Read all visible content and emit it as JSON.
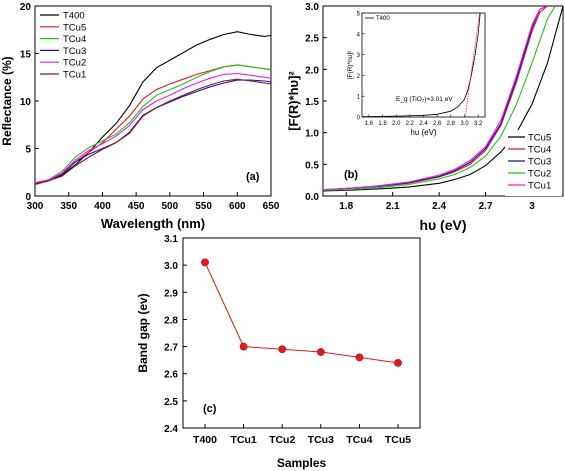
{
  "chart_data": [
    {
      "id": "a",
      "type": "line",
      "panel_label": "(a)",
      "xlabel": "Wavelength (nm)",
      "ylabel": "Reflectance (%)",
      "xlim": [
        300,
        650
      ],
      "ylim": [
        0,
        20
      ],
      "xticks": [
        300,
        350,
        400,
        450,
        500,
        550,
        600,
        650
      ],
      "yticks": [
        0,
        5,
        10,
        15,
        20
      ],
      "legend_position": "top-left",
      "series": [
        {
          "name": "T400",
          "color": "#000000",
          "x": [
            300,
            320,
            340,
            360,
            380,
            400,
            420,
            440,
            460,
            480,
            500,
            520,
            540,
            560,
            580,
            600,
            620,
            640,
            650
          ],
          "y": [
            1.3,
            1.6,
            2.2,
            3.3,
            4.6,
            6.2,
            7.6,
            9.5,
            12.0,
            13.5,
            14.3,
            15.1,
            15.9,
            16.5,
            17.0,
            17.3,
            17.0,
            16.8,
            16.9
          ]
        },
        {
          "name": "TCu5",
          "color": "#e0191b",
          "x": [
            300,
            320,
            340,
            360,
            380,
            400,
            420,
            440,
            460,
            480,
            500,
            520,
            540,
            560,
            580,
            600,
            620,
            640,
            650
          ],
          "y": [
            1.2,
            1.6,
            2.3,
            3.6,
            4.6,
            5.6,
            7.0,
            8.4,
            10.2,
            11.2,
            11.8,
            12.3,
            12.8,
            13.2,
            13.6,
            13.8,
            13.6,
            13.4,
            13.3
          ]
        },
        {
          "name": "TCu4",
          "color": "#21c21c",
          "x": [
            300,
            320,
            340,
            360,
            380,
            400,
            420,
            440,
            460,
            480,
            500,
            520,
            540,
            560,
            580,
            600,
            620,
            640,
            650
          ],
          "y": [
            1.3,
            1.7,
            2.6,
            4.1,
            5.1,
            5.8,
            6.5,
            7.7,
            9.4,
            10.6,
            11.2,
            11.8,
            12.5,
            13.1,
            13.6,
            13.8,
            13.6,
            13.4,
            13.3
          ]
        },
        {
          "name": "TCu3",
          "color": "#1414b4",
          "x": [
            300,
            320,
            340,
            360,
            380,
            400,
            420,
            440,
            460,
            480,
            500,
            520,
            540,
            560,
            580,
            600,
            620,
            640,
            650
          ],
          "y": [
            1.3,
            1.6,
            2.3,
            3.6,
            4.4,
            5.0,
            5.6,
            6.7,
            8.5,
            9.3,
            9.9,
            10.5,
            11.0,
            11.5,
            11.9,
            12.2,
            12.2,
            12.1,
            12.0
          ]
        },
        {
          "name": "TCu2",
          "color": "#e81de8",
          "x": [
            300,
            320,
            340,
            360,
            380,
            400,
            420,
            440,
            460,
            480,
            500,
            520,
            540,
            560,
            580,
            600,
            620,
            640,
            650
          ],
          "y": [
            1.4,
            1.7,
            2.4,
            3.8,
            4.8,
            5.5,
            6.3,
            7.4,
            9.1,
            10.0,
            10.6,
            11.3,
            11.9,
            12.4,
            12.8,
            12.9,
            12.7,
            12.5,
            12.4
          ]
        },
        {
          "name": "TCu1",
          "color": "#8b1a1a",
          "x": [
            300,
            320,
            340,
            360,
            380,
            400,
            420,
            440,
            460,
            480,
            500,
            520,
            540,
            560,
            580,
            600,
            620,
            640,
            650
          ],
          "y": [
            1.3,
            1.6,
            2.1,
            3.2,
            4.1,
            4.9,
            5.6,
            6.6,
            8.4,
            9.3,
            10.0,
            10.6,
            11.2,
            11.7,
            12.1,
            12.3,
            12.1,
            11.9,
            11.8
          ]
        }
      ]
    },
    {
      "id": "b",
      "type": "line",
      "panel_label": "(b)",
      "xlabel": "hυ (eV)",
      "ylabel": "[F(R)*hυ]²",
      "xlim": [
        1.65,
        3.2
      ],
      "ylim": [
        0,
        3.0
      ],
      "xticks": [
        1.8,
        2.1,
        2.4,
        2.7,
        3.0
      ],
      "yticks": [
        0.0,
        0.5,
        1.0,
        1.5,
        2.0,
        2.5,
        3.0
      ],
      "legend_position": "bottom-right",
      "series": [
        {
          "name": "TCu5",
          "color": "#000000",
          "x": [
            1.65,
            1.8,
            2.0,
            2.2,
            2.4,
            2.5,
            2.6,
            2.7,
            2.8,
            2.9,
            3.0,
            3.1,
            3.2
          ],
          "y": [
            0.08,
            0.09,
            0.11,
            0.14,
            0.2,
            0.26,
            0.34,
            0.48,
            0.7,
            1.0,
            1.45,
            2.1,
            3.0
          ]
        },
        {
          "name": "TCu4",
          "color": "#e0191b",
          "x": [
            1.65,
            1.8,
            2.0,
            2.2,
            2.4,
            2.5,
            2.6,
            2.7,
            2.8,
            2.9,
            3.0,
            3.05,
            3.1
          ],
          "y": [
            0.1,
            0.12,
            0.15,
            0.2,
            0.3,
            0.38,
            0.5,
            0.72,
            1.12,
            1.8,
            2.6,
            2.9,
            3.0
          ]
        },
        {
          "name": "TCu3",
          "color": "#1414b4",
          "x": [
            1.65,
            1.8,
            2.0,
            2.2,
            2.4,
            2.5,
            2.6,
            2.7,
            2.8,
            2.9,
            3.0,
            3.05,
            3.1
          ],
          "y": [
            0.1,
            0.12,
            0.15,
            0.21,
            0.31,
            0.4,
            0.53,
            0.75,
            1.15,
            1.85,
            2.65,
            2.95,
            3.0
          ]
        },
        {
          "name": "TCu2",
          "color": "#21c21c",
          "x": [
            1.65,
            1.8,
            2.0,
            2.2,
            2.4,
            2.5,
            2.6,
            2.7,
            2.8,
            2.9,
            3.0,
            3.1,
            3.15
          ],
          "y": [
            0.09,
            0.1,
            0.13,
            0.18,
            0.27,
            0.34,
            0.45,
            0.63,
            0.95,
            1.45,
            2.1,
            2.8,
            3.0
          ]
        },
        {
          "name": "TCu1",
          "color": "#e81de8",
          "x": [
            1.65,
            1.8,
            2.0,
            2.2,
            2.4,
            2.5,
            2.6,
            2.7,
            2.8,
            2.9,
            3.0,
            3.05,
            3.1
          ],
          "y": [
            0.1,
            0.12,
            0.16,
            0.22,
            0.33,
            0.42,
            0.56,
            0.78,
            1.2,
            1.9,
            2.7,
            2.95,
            3.0
          ]
        }
      ],
      "inset": {
        "xlabel": "hυ (eV)",
        "ylabel": "[F(R)*hυ]²",
        "xlim": [
          1.5,
          3.3
        ],
        "ylim": [
          0,
          5
        ],
        "xticks": [
          1.6,
          1.8,
          2.0,
          2.2,
          2.4,
          2.6,
          2.8,
          3.0,
          3.2
        ],
        "yticks": [
          0,
          1,
          2,
          3,
          4,
          5
        ],
        "legend_label": "T400",
        "annotation": "E_g (TiO₂)=3.01 eV",
        "series": [
          {
            "name": "T400",
            "color": "#000000",
            "x": [
              1.5,
              1.8,
              2.1,
              2.4,
              2.6,
              2.8,
              2.9,
              3.0,
              3.05,
              3.1,
              3.15,
              3.2,
              3.23
            ],
            "y": [
              0.02,
              0.03,
              0.05,
              0.08,
              0.13,
              0.28,
              0.48,
              0.85,
              1.3,
              2.0,
              2.9,
              4.0,
              5.0
            ]
          }
        ],
        "fit_line": {
          "color": "#e0191b",
          "x": [
            3.01,
            3.22
          ],
          "y": [
            0,
            5
          ]
        }
      }
    },
    {
      "id": "c",
      "type": "line",
      "panel_label": "(c)",
      "xlabel": "Samples",
      "ylabel": "Band gap (ev)",
      "ylim": [
        2.4,
        3.1
      ],
      "yticks": [
        2.4,
        2.5,
        2.6,
        2.7,
        2.8,
        2.9,
        3.0,
        3.1
      ],
      "categories": [
        "T400",
        "TCu1",
        "TCu2",
        "TCu3",
        "TCu4",
        "TCu5"
      ],
      "values": [
        3.01,
        2.7,
        2.69,
        2.68,
        2.66,
        2.64
      ],
      "color": "#e0191b"
    }
  ]
}
